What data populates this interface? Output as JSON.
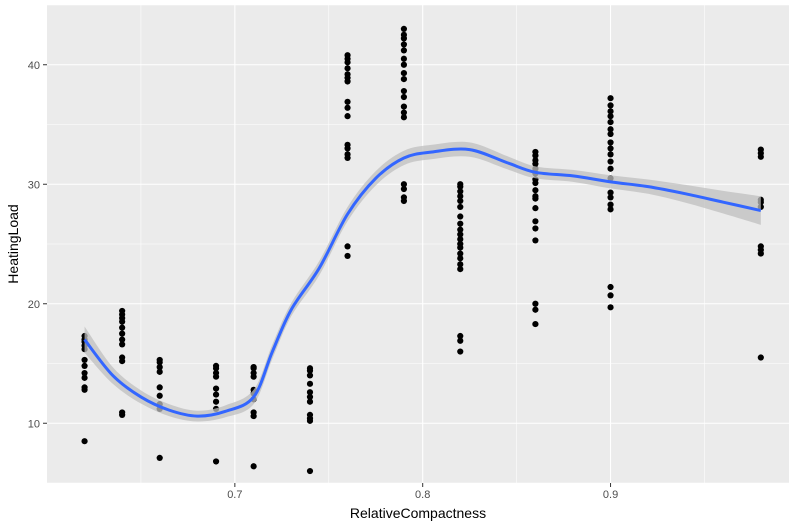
{
  "chart_data": {
    "type": "scatter",
    "xlabel": "RelativeCompactness",
    "ylabel": "HeatingLoad",
    "xlim": [
      0.6,
      0.995
    ],
    "ylim": [
      5,
      45
    ],
    "x_ticks": [
      0.7,
      0.8,
      0.9
    ],
    "x_tick_labels": [
      "0.7",
      "0.8",
      "0.9"
    ],
    "y_ticks": [
      10,
      20,
      30,
      40
    ],
    "y_tick_labels": [
      "10",
      "20",
      "30",
      "40"
    ],
    "grid": true,
    "colors": {
      "panel": "#ebebeb",
      "grid_major": "#ffffff",
      "point": "#000000",
      "smooth_line": "#3366ff",
      "ribbon": "#bfbfbf"
    },
    "series": [
      {
        "type": "scatter",
        "groups": [
          {
            "x": 0.62,
            "y": [
              8.5,
              12.8,
              13.0,
              13.8,
              14.2,
              14.8,
              15.3,
              16.2,
              16.5,
              16.8,
              17.0,
              17.3
            ]
          },
          {
            "x": 0.64,
            "y": [
              10.7,
              10.9,
              15.2,
              15.5,
              16.6,
              17.0,
              17.5,
              18.0,
              18.5,
              18.8,
              19.1,
              19.4
            ]
          },
          {
            "x": 0.66,
            "y": [
              7.1,
              11.2,
              11.6,
              12.3,
              13.0,
              14.3,
              14.7,
              15.1,
              15.3
            ]
          },
          {
            "x": 0.69,
            "y": [
              6.8,
              11.2,
              11.8,
              12.4,
              12.9,
              13.9,
              14.2,
              14.6,
              14.8
            ]
          },
          {
            "x": 0.71,
            "y": [
              6.4,
              10.6,
              10.9,
              12.0,
              12.5,
              12.8,
              13.9,
              14.2,
              14.6,
              14.7
            ]
          },
          {
            "x": 0.74,
            "y": [
              6.0,
              10.2,
              10.4,
              10.7,
              11.8,
              12.2,
              12.6,
              13.3,
              14.0,
              14.4,
              14.6
            ]
          },
          {
            "x": 0.76,
            "y": [
              24.0,
              24.8,
              32.2,
              32.5,
              33.0,
              33.3,
              35.7,
              36.4,
              36.9,
              38.6,
              38.9,
              39.2,
              39.7,
              40.2,
              40.5,
              40.8
            ]
          },
          {
            "x": 0.79,
            "y": [
              28.6,
              28.9,
              29.6,
              30.0,
              35.6,
              36.0,
              36.5,
              37.3,
              37.8,
              38.8,
              39.3,
              40.0,
              40.5,
              41.2,
              41.7,
              42.2,
              42.5,
              43.0
            ]
          },
          {
            "x": 0.82,
            "y": [
              16.0,
              16.9,
              17.3,
              22.9,
              23.3,
              23.8,
              24.2,
              24.7,
              25.0,
              25.4,
              25.8,
              26.2,
              26.7,
              27.3,
              28.1,
              28.6,
              29.0,
              29.4,
              29.8,
              30.0
            ]
          },
          {
            "x": 0.86,
            "y": [
              18.3,
              19.5,
              20.0,
              25.3,
              26.3,
              26.9,
              28.0,
              28.8,
              29.0,
              29.5,
              30.1,
              30.4,
              30.9,
              31.3,
              31.7,
              32.0,
              32.4,
              32.7
            ]
          },
          {
            "x": 0.9,
            "y": [
              19.7,
              20.7,
              21.4,
              27.9,
              28.3,
              28.9,
              29.3,
              30.5,
              31.3,
              31.9,
              32.5,
              33.0,
              33.5,
              34.2,
              34.6,
              35.2,
              35.7,
              36.1,
              36.6,
              37.2
            ]
          },
          {
            "x": 0.98,
            "y": [
              15.5,
              24.2,
              24.5,
              24.8,
              28.1,
              28.5,
              28.7,
              32.3,
              32.6,
              32.9
            ]
          }
        ]
      },
      {
        "type": "line",
        "x": [
          0.62,
          0.635,
          0.65,
          0.665,
          0.68,
          0.695,
          0.71,
          0.72,
          0.73,
          0.745,
          0.76,
          0.775,
          0.79,
          0.805,
          0.825,
          0.845,
          0.86,
          0.88,
          0.9,
          0.92,
          0.94,
          0.96,
          0.98
        ],
        "y": [
          17.0,
          14.0,
          12.2,
          11.1,
          10.6,
          11.0,
          12.2,
          16.0,
          19.5,
          23.0,
          27.5,
          30.5,
          32.2,
          32.7,
          32.9,
          31.8,
          31.0,
          30.7,
          30.2,
          29.8,
          29.2,
          28.5,
          27.8
        ],
        "ribbon_halfwidth": [
          1.1,
          0.7,
          0.55,
          0.5,
          0.45,
          0.5,
          0.6,
          0.6,
          0.55,
          0.6,
          0.6,
          0.6,
          0.6,
          0.6,
          0.6,
          0.55,
          0.5,
          0.5,
          0.55,
          0.6,
          0.75,
          0.95,
          1.2
        ]
      }
    ]
  }
}
